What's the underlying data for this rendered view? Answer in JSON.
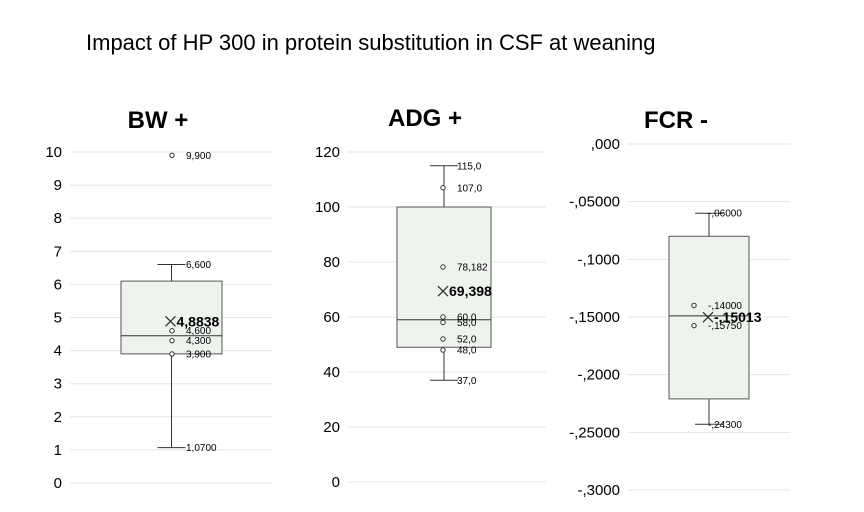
{
  "title": "Impact of HP 300 in protein substitution in CSF at weaning",
  "colors": {
    "box_fill": "#eef3ee",
    "box_stroke": "#555555",
    "grid": "#dfe8e4",
    "whisker": "#333333",
    "text": "#000000"
  },
  "chart_data": [
    {
      "type": "box",
      "title": "BW +",
      "ylim": [
        0,
        10
      ],
      "ticks": [
        0,
        1,
        2,
        3,
        4,
        5,
        6,
        7,
        8,
        9,
        10
      ],
      "tick_labels": [
        "0",
        "1",
        "2",
        "3",
        "4",
        "5",
        "6",
        "7",
        "8",
        "9",
        "10"
      ],
      "box": {
        "whisker_low": 1.07,
        "q1": 3.9,
        "median": 4.45,
        "q3": 6.1,
        "whisker_high": 6.6
      },
      "mean": 4.8838,
      "mean_label": "4,8838",
      "points": [
        {
          "value": 9.9,
          "label": "9,900",
          "outlier": true
        },
        {
          "value": 6.6,
          "label": "6,600",
          "outlier": false
        },
        {
          "value": 4.6,
          "label": "4,600",
          "outlier": true
        },
        {
          "value": 4.3,
          "label": "4,300",
          "outlier": true
        },
        {
          "value": 3.9,
          "label": "3,900",
          "outlier": true
        },
        {
          "value": 1.07,
          "label": "1,0700",
          "outlier": false
        }
      ]
    },
    {
      "type": "box",
      "title": "ADG +",
      "ylim": [
        0,
        120
      ],
      "ticks": [
        0,
        20,
        40,
        60,
        80,
        100,
        120
      ],
      "tick_labels": [
        "0",
        "20",
        "40",
        "60",
        "80",
        "100",
        "120"
      ],
      "box": {
        "whisker_low": 37.0,
        "q1": 49.0,
        "median": 59.0,
        "q3": 100.0,
        "whisker_high": 115.0
      },
      "mean": 69.398,
      "mean_label": "69,398",
      "points": [
        {
          "value": 115.0,
          "label": "115,0",
          "outlier": false
        },
        {
          "value": 107.0,
          "label": "107,0",
          "outlier": true
        },
        {
          "value": 78.182,
          "label": "78,182",
          "outlier": true
        },
        {
          "value": 60.0,
          "label": "60,0",
          "outlier": true
        },
        {
          "value": 58.0,
          "label": "58,0",
          "outlier": true
        },
        {
          "value": 52.0,
          "label": "52,0",
          "outlier": true
        },
        {
          "value": 48.0,
          "label": "48,0",
          "outlier": true
        },
        {
          "value": 37.0,
          "label": "37,0",
          "outlier": false
        }
      ]
    },
    {
      "type": "box",
      "title": "FCR -",
      "ylim": [
        -0.3,
        0.0
      ],
      "ticks": [
        0.0,
        -0.05,
        -0.1,
        -0.15,
        -0.2,
        -0.25,
        -0.3
      ],
      "tick_labels": [
        ",000",
        "-,05000",
        "-,1000",
        "-,15000",
        "-,2000",
        "-,25000",
        "-,3000"
      ],
      "box": {
        "whisker_low": -0.243,
        "q1": -0.221,
        "median": -0.149,
        "q3": -0.08,
        "whisker_high": -0.06
      },
      "mean": -0.15013,
      "mean_label": "-,15013",
      "points": [
        {
          "value": -0.06,
          "label": "-,06000",
          "outlier": false
        },
        {
          "value": -0.14,
          "label": "-,14000",
          "outlier": true
        },
        {
          "value": -0.1575,
          "label": "-,15750",
          "outlier": true
        },
        {
          "value": -0.243,
          "label": "-,24300",
          "outlier": false
        }
      ]
    }
  ]
}
